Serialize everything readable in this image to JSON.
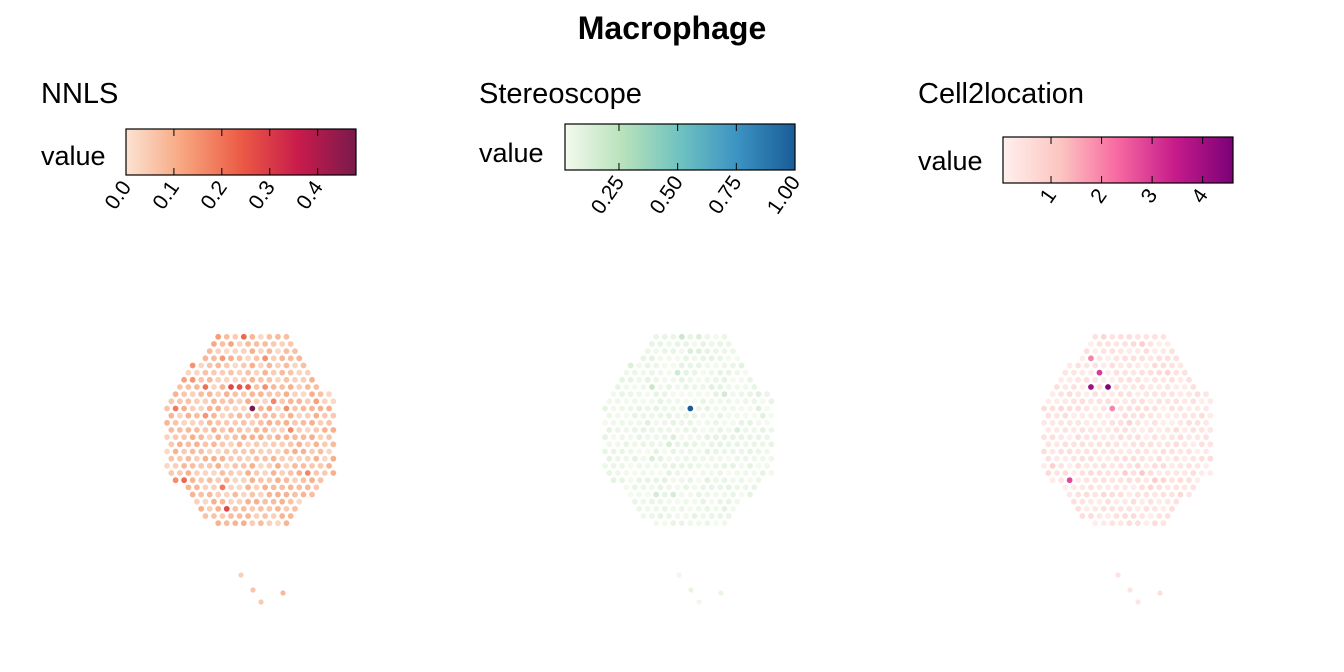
{
  "title": "Macrophage",
  "chart_data": [
    {
      "type": "scatter",
      "title": "NNLS",
      "legend_title": "value",
      "legend_position": "top",
      "grid": false,
      "color_scale": [
        "#fbe3d3",
        "#f7a57e",
        "#ec5b45",
        "#c81b4b",
        "#7a1a4c"
      ],
      "value_range": [
        0,
        0.48
      ],
      "ticks": [
        0.0,
        0.1,
        0.2,
        0.3,
        0.4
      ],
      "tick_labels": [
        "0.0",
        "0.1",
        "0.2",
        "0.3",
        "0.4"
      ],
      "typical_value": 0.06,
      "variation": 0.08,
      "hotspots": [
        {
          "row": 10,
          "col": 10,
          "value": 0.48
        },
        {
          "row": 7,
          "col": 7,
          "value": 0.28
        },
        {
          "row": 7,
          "col": 8,
          "value": 0.26
        },
        {
          "row": 7,
          "col": 9,
          "value": 0.24
        },
        {
          "row": 0,
          "col": 9,
          "value": 0.22
        },
        {
          "row": 20,
          "col": 2,
          "value": 0.22
        },
        {
          "row": 24,
          "col": 7,
          "value": 0.28
        }
      ]
    },
    {
      "type": "scatter",
      "title": "Stereoscope",
      "legend_title": "value",
      "legend_position": "top",
      "grid": false,
      "color_scale": [
        "#f4faee",
        "#b8e2bb",
        "#6fc2c0",
        "#3b93c3",
        "#1a5c98"
      ],
      "value_range": [
        0.02,
        1.0
      ],
      "ticks": [
        0.25,
        0.5,
        0.75,
        1.0
      ],
      "tick_labels": [
        "0.25",
        "0.50",
        "0.75",
        "1.00"
      ],
      "typical_value": 0.05,
      "variation": 0.06,
      "hotspots": [
        {
          "row": 10,
          "col": 10,
          "value": 1.0
        },
        {
          "row": 7,
          "col": 5,
          "value": 0.2
        },
        {
          "row": 0,
          "col": 9,
          "value": 0.2
        },
        {
          "row": 22,
          "col": 8,
          "value": 0.15
        }
      ]
    },
    {
      "type": "scatter",
      "title": "Cell2location",
      "legend_title": "value",
      "legend_position": "top",
      "grid": false,
      "color_scale": [
        "#fff0ee",
        "#fcc5c0",
        "#f768a1",
        "#c51b8a",
        "#7a0177"
      ],
      "value_range": [
        0.05,
        4.6
      ],
      "ticks": [
        1,
        2,
        3,
        4
      ],
      "tick_labels": [
        "1",
        "2",
        "3",
        "4"
      ],
      "typical_value": 0.35,
      "variation": 0.35,
      "hotspots": [
        {
          "row": 7,
          "col": 7,
          "value": 4.5
        },
        {
          "row": 7,
          "col": 5,
          "value": 4.0
        },
        {
          "row": 5,
          "col": 6,
          "value": 3.0
        },
        {
          "row": 20,
          "col": 3,
          "value": 2.8
        },
        {
          "row": 10,
          "col": 8,
          "value": 2.0
        },
        {
          "row": 3,
          "col": 5,
          "value": 2.0
        }
      ]
    }
  ]
}
